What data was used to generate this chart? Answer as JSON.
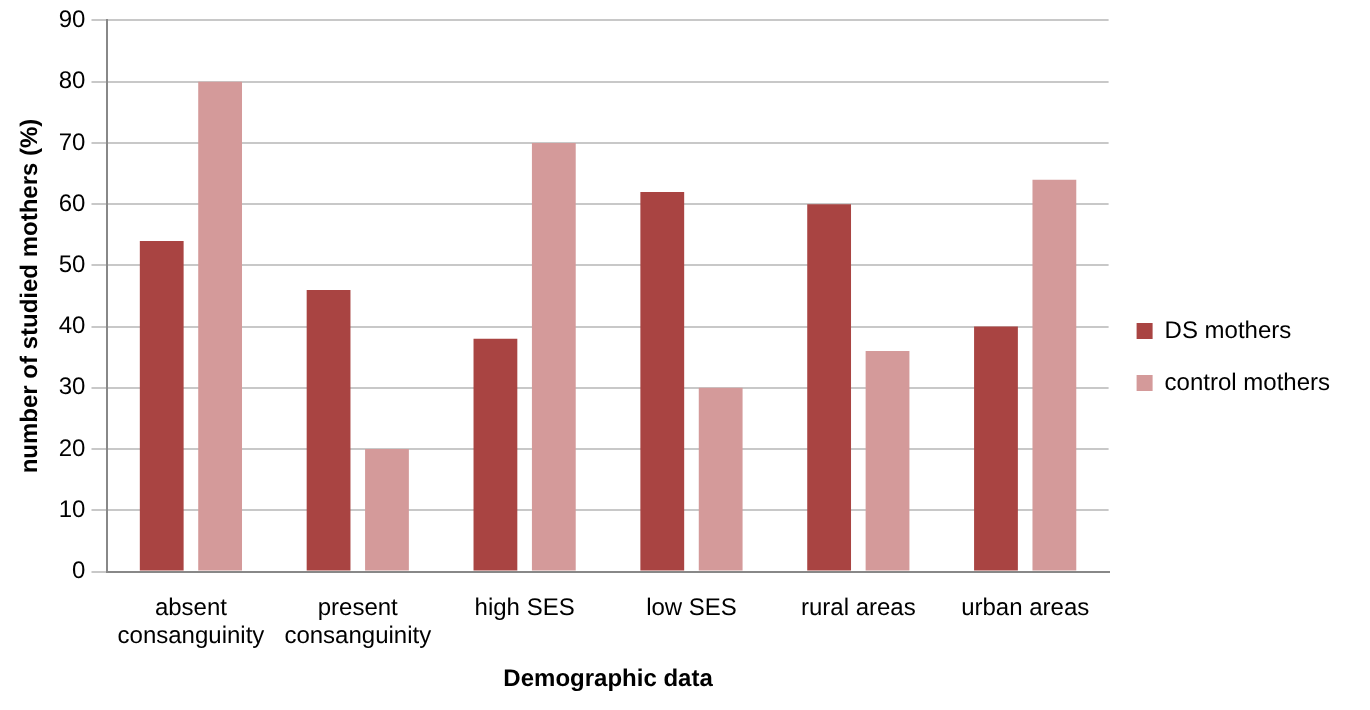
{
  "chart_data": {
    "type": "bar",
    "xlabel": "Demographic data",
    "ylabel": "number of studied mothers (%)",
    "categories": [
      "absent consanguinity",
      "present consanguinity",
      "high SES",
      "low SES",
      "rural areas",
      "urban areas"
    ],
    "series": [
      {
        "name": "DS mothers",
        "color": "#a94442",
        "values": [
          54,
          46,
          38,
          62,
          60,
          40
        ]
      },
      {
        "name": "control mothers",
        "color": "#d49a9a",
        "values": [
          80,
          20,
          70,
          30,
          36,
          64
        ]
      }
    ],
    "ylim": [
      0,
      90
    ],
    "yticks": [
      0,
      10,
      20,
      30,
      40,
      50,
      60,
      70,
      80,
      90
    ],
    "grid": "y",
    "legend": "right"
  }
}
